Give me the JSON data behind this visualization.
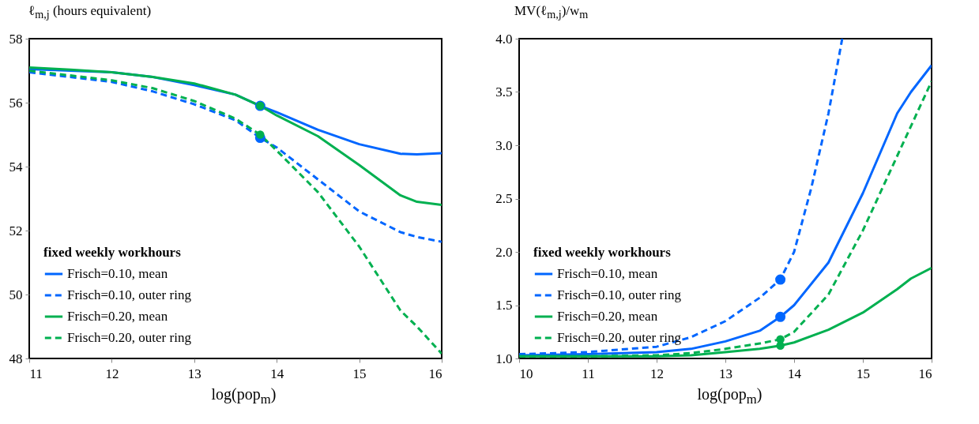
{
  "chart_data": [
    {
      "type": "line",
      "xlabel": "log(pop$_{m}$)",
      "ylabel": "ℓ$_{m,j}$ (hours equivalent)",
      "legend_title": "fixed weekly workhours",
      "legend": "bottom left",
      "grid": false,
      "xlim": [
        11,
        16
      ],
      "xticks": [
        11,
        12,
        13,
        14,
        15,
        16
      ],
      "ylim": [
        48,
        58
      ],
      "yticks": [
        48,
        50,
        52,
        54,
        56,
        58
      ],
      "x": [
        11,
        11.5,
        12,
        12.5,
        13,
        13.5,
        13.8,
        14,
        14.5,
        15,
        15.5,
        15.7,
        16
      ],
      "series": [
        {
          "name": "Frisch=0.10, mean",
          "color": "#0066ff",
          "line_style": "solid",
          "values": [
            57.05,
            57.0,
            56.95,
            56.8,
            56.55,
            56.25,
            55.9,
            55.7,
            55.15,
            54.7,
            54.4,
            54.38,
            54.42
          ]
        },
        {
          "name": "Frisch=0.10, outer ring",
          "color": "#0066ff",
          "line_style": "dashed",
          "values": [
            56.95,
            56.8,
            56.65,
            56.35,
            55.95,
            55.45,
            54.9,
            54.6,
            53.6,
            52.6,
            51.95,
            51.8,
            51.65
          ]
        },
        {
          "name": "Frisch=0.20, mean",
          "color": "#00b050",
          "line_style": "solid",
          "values": [
            57.1,
            57.03,
            56.95,
            56.8,
            56.6,
            56.25,
            55.9,
            55.6,
            54.95,
            54.05,
            53.1,
            52.9,
            52.8
          ]
        },
        {
          "name": "Frisch=0.20, outer ring",
          "color": "#00b050",
          "line_style": "dashed",
          "values": [
            57.0,
            56.85,
            56.7,
            56.45,
            56.05,
            55.5,
            55.0,
            54.5,
            53.2,
            51.5,
            49.5,
            49.0,
            48.15
          ]
        },
        {
          "type": "scatter",
          "marker": "circle",
          "color": "#0066ff",
          "x": [
            13.8,
            13.8
          ],
          "values": [
            55.9,
            54.9
          ]
        },
        {
          "type": "scatter",
          "marker": "circle",
          "color": "#00b050",
          "x": [
            13.8,
            13.8
          ],
          "values": [
            55.9,
            55.0
          ]
        }
      ]
    },
    {
      "type": "line",
      "xlabel": "log(pop$_{m}$)",
      "ylabel": "MV(ℓ$_{m,j}$)/w$_{m}$",
      "legend_title": "fixed weekly workhours",
      "legend": "bottom left",
      "grid": false,
      "xlim": [
        10,
        16
      ],
      "xticks": [
        10,
        11,
        12,
        13,
        14,
        15,
        16
      ],
      "ylim": [
        1,
        4
      ],
      "yticks": [
        {
          "value": 1,
          "label": "1.0"
        },
        1.5,
        {
          "value": 2,
          "label": "2.0"
        },
        2.5,
        {
          "value": 3,
          "label": "3.0"
        },
        3.5,
        {
          "value": 4,
          "label": "4.0"
        }
      ],
      "series": [
        {
          "name": "Frisch=0.10, mean",
          "color": "#0066ff",
          "line_style": "solid",
          "x": [
            10,
            11,
            12,
            12.5,
            13,
            13.5,
            13.8,
            14,
            14.5,
            15,
            15.5,
            15.7,
            16
          ],
          "values": [
            1.03,
            1.04,
            1.06,
            1.09,
            1.16,
            1.26,
            1.39,
            1.5,
            1.9,
            2.55,
            3.3,
            3.5,
            3.75
          ]
        },
        {
          "name": "Frisch=0.10, outer ring",
          "color": "#0066ff",
          "line_style": "dashed",
          "x": [
            10,
            11,
            12,
            12.5,
            13,
            13.5,
            13.8,
            14,
            14.25,
            14.5,
            14.7
          ],
          "values": [
            1.04,
            1.06,
            1.11,
            1.2,
            1.35,
            1.57,
            1.74,
            2.0,
            2.6,
            3.3,
            4.0
          ]
        },
        {
          "name": "Frisch=0.20, mean",
          "color": "#00b050",
          "line_style": "solid",
          "x": [
            10,
            11,
            12,
            12.5,
            13,
            13.5,
            13.8,
            14,
            14.5,
            15,
            15.5,
            15.7,
            16
          ],
          "values": [
            1.02,
            1.02,
            1.02,
            1.03,
            1.06,
            1.09,
            1.12,
            1.15,
            1.27,
            1.43,
            1.65,
            1.75,
            1.85
          ]
        },
        {
          "name": "Frisch=0.20, outer ring",
          "color": "#00b050",
          "line_style": "dashed",
          "x": [
            10,
            11,
            12,
            12.5,
            13,
            13.5,
            13.8,
            14,
            14.5,
            15,
            15.5,
            16
          ],
          "values": [
            1.02,
            1.02,
            1.03,
            1.05,
            1.09,
            1.14,
            1.18,
            1.25,
            1.6,
            2.2,
            2.9,
            3.6
          ]
        },
        {
          "type": "scatter",
          "marker": "circle",
          "color": "#0066ff",
          "x": [
            13.8,
            13.8
          ],
          "values": [
            1.74,
            1.39
          ]
        },
        {
          "type": "scatter",
          "marker": "circle",
          "color": "#00b050",
          "x": [
            13.8,
            13.8
          ],
          "values": [
            1.18,
            1.12
          ]
        }
      ]
    }
  ]
}
